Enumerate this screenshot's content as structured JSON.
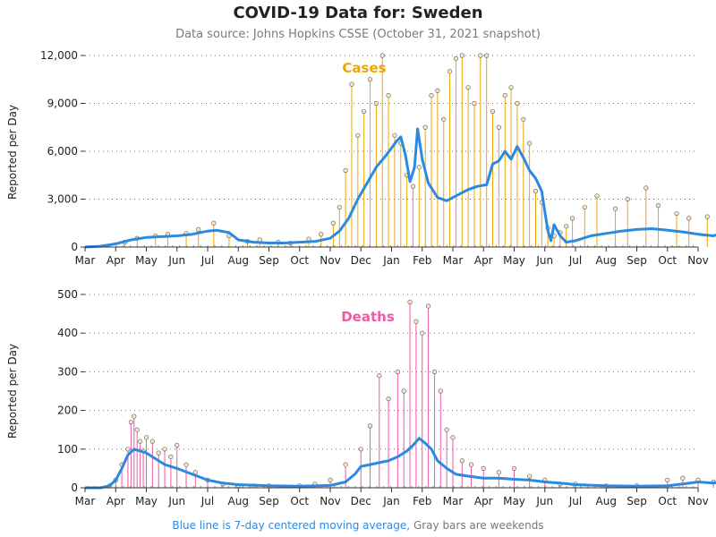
{
  "title": "COVID-19 Data for: Sweden",
  "subtitle": "Data source: Johns Hopkins CSSE (October 31, 2021 snapshot)",
  "footer": {
    "blue": "Blue line is 7-day centered moving average,",
    "gray": "Gray bars are weekends"
  },
  "colors": {
    "cases": "#f0a500",
    "deaths": "#ee5aa6",
    "average": "#2b8ae0",
    "weekend": "#9a9a9a"
  },
  "chart_data": [
    {
      "type": "bar",
      "label": "Cases",
      "ylabel": "Reported per Day",
      "ylim": [
        0,
        12000
      ],
      "yticks": [
        "0",
        "3,000",
        "6,000",
        "9,000",
        "12,000"
      ],
      "ytick_values": [
        0,
        3000,
        6000,
        9000,
        12000
      ],
      "xticks": [
        "Mar",
        "Apr",
        "May",
        "Jun",
        "Jul",
        "Aug",
        "Sep",
        "Oct",
        "Nov",
        "Dec",
        "Jan",
        "Feb",
        "Mar",
        "Apr",
        "May",
        "Jun",
        "Jul",
        "Aug",
        "Sep",
        "Oct",
        "Nov"
      ],
      "grid": "horizontal dotted",
      "series": [
        {
          "name": "Cases",
          "kind": "daily",
          "x_month_index": [
            1.3,
            1.7,
            2.3,
            2.7,
            3.3,
            3.7,
            4.2,
            4.7,
            5.3,
            5.7,
            6.3,
            6.7,
            7.3,
            7.7,
            8.1,
            8.3,
            8.5,
            8.7,
            8.9,
            9.1,
            9.3,
            9.5,
            9.7,
            9.9,
            10.1,
            10.3,
            10.5,
            10.7,
            10.9,
            11.1,
            11.3,
            11.5,
            11.7,
            11.9,
            12.1,
            12.3,
            12.5,
            12.7,
            12.9,
            13.1,
            13.3,
            13.5,
            13.7,
            13.9,
            14.1,
            14.3,
            14.5,
            14.7,
            14.9,
            15.1,
            15.3,
            15.5,
            15.7,
            15.9,
            16.3,
            16.7,
            17.3,
            17.7,
            18.3,
            18.7,
            19.3,
            19.7,
            20.3,
            20.7
          ],
          "values": [
            300,
            550,
            700,
            800,
            850,
            1100,
            1500,
            700,
            350,
            450,
            300,
            250,
            500,
            800,
            1500,
            2500,
            4800,
            10200,
            7000,
            8500,
            10500,
            9000,
            12000,
            9500,
            7000,
            6500,
            4500,
            3800,
            5000,
            7500,
            9500,
            9800,
            8000,
            11000,
            11800,
            12000,
            10000,
            9000,
            12000,
            12000,
            8500,
            7500,
            9500,
            10000,
            9000,
            8000,
            6500,
            3500,
            2800,
            1200,
            700,
            900,
            1300,
            1800,
            2500,
            3200,
            2400,
            3000,
            3700,
            2600,
            2100,
            1800,
            1900,
            1600
          ]
        },
        {
          "name": "7-day average",
          "kind": "average",
          "x_month_index": [
            0,
            0.5,
            1,
            1.5,
            2,
            2.5,
            3,
            3.5,
            4,
            4.3,
            4.7,
            5,
            5.5,
            6,
            6.5,
            7,
            7.5,
            8,
            8.3,
            8.6,
            8.9,
            9.2,
            9.5,
            9.8,
            10,
            10.15,
            10.3,
            10.45,
            10.6,
            10.75,
            10.85,
            11,
            11.2,
            11.5,
            11.8,
            12.1,
            12.5,
            12.8,
            13.1,
            13.3,
            13.5,
            13.7,
            13.9,
            14.1,
            14.3,
            14.5,
            14.7,
            14.9,
            15.0,
            15.1,
            15.2,
            15.3,
            15.5,
            15.7,
            16,
            16.5,
            17,
            17.5,
            18,
            18.5,
            19,
            19.5,
            20,
            20.5,
            20.9
          ],
          "values": [
            0,
            50,
            200,
            450,
            600,
            650,
            700,
            800,
            1000,
            1050,
            900,
            450,
            300,
            250,
            250,
            300,
            350,
            550,
            1000,
            1800,
            3000,
            4000,
            5000,
            5700,
            6200,
            6600,
            6900,
            5800,
            4100,
            5000,
            7400,
            5500,
            4000,
            3100,
            2900,
            3200,
            3600,
            3800,
            3900,
            5200,
            5400,
            6000,
            5500,
            6300,
            5600,
            4800,
            4300,
            3500,
            2200,
            1000,
            400,
            1400,
            700,
            300,
            400,
            700,
            850,
            1000,
            1100,
            1150,
            1050,
            950,
            800,
            700,
            950
          ]
        }
      ]
    },
    {
      "type": "bar",
      "label": "Deaths",
      "ylabel": "Reported per Day",
      "ylim": [
        0,
        500
      ],
      "yticks": [
        "0",
        "100",
        "200",
        "300",
        "400",
        "500"
      ],
      "ytick_values": [
        0,
        100,
        200,
        300,
        400,
        500
      ],
      "xticks": [
        "Mar",
        "Apr",
        "May",
        "Jun",
        "Jul",
        "Aug",
        "Sep",
        "Oct",
        "Nov",
        "Dec",
        "Jan",
        "Feb",
        "Mar",
        "Apr",
        "May",
        "Jun",
        "Jul",
        "Aug",
        "Sep",
        "Oct",
        "Nov"
      ],
      "grid": "horizontal dotted",
      "series": [
        {
          "name": "Deaths",
          "kind": "daily",
          "x_month_index": [
            0.8,
            1.0,
            1.2,
            1.4,
            1.5,
            1.6,
            1.7,
            1.8,
            1.9,
            2.0,
            2.2,
            2.4,
            2.6,
            2.8,
            3.0,
            3.3,
            3.6,
            4.0,
            4.5,
            5.0,
            5.5,
            6.0,
            7.0,
            7.5,
            8.0,
            8.5,
            9.0,
            9.3,
            9.6,
            9.9,
            10.2,
            10.4,
            10.6,
            10.8,
            11.0,
            11.2,
            11.4,
            11.6,
            11.8,
            12.0,
            12.3,
            12.6,
            13.0,
            13.5,
            14.0,
            14.5,
            15.0,
            15.5,
            16.0,
            17.0,
            18.0,
            19.0,
            19.5,
            20.0,
            20.5
          ],
          "values": [
            5,
            20,
            60,
            100,
            170,
            185,
            150,
            120,
            95,
            130,
            120,
            90,
            100,
            80,
            110,
            60,
            40,
            20,
            10,
            5,
            5,
            5,
            5,
            10,
            20,
            60,
            100,
            160,
            290,
            230,
            300,
            250,
            480,
            430,
            400,
            470,
            300,
            250,
            150,
            130,
            70,
            60,
            50,
            40,
            50,
            30,
            20,
            10,
            10,
            5,
            5,
            20,
            25,
            20,
            15
          ]
        },
        {
          "name": "7-day average",
          "kind": "average",
          "x_month_index": [
            0,
            0.5,
            0.8,
            1.0,
            1.2,
            1.4,
            1.6,
            1.8,
            2.0,
            2.3,
            2.6,
            3.0,
            3.5,
            4.0,
            4.5,
            5.0,
            6.0,
            7.0,
            8.0,
            8.5,
            8.8,
            9.0,
            9.3,
            9.6,
            9.9,
            10.2,
            10.5,
            10.7,
            10.9,
            11.1,
            11.3,
            11.5,
            11.8,
            12.1,
            12.5,
            13.0,
            13.5,
            14.0,
            14.5,
            15.0,
            15.5,
            16.0,
            17.0,
            18.0,
            19.0,
            19.5,
            20.0,
            20.5,
            20.9
          ],
          "values": [
            0,
            0,
            5,
            20,
            50,
            85,
            100,
            95,
            90,
            75,
            60,
            50,
            35,
            20,
            12,
            8,
            5,
            4,
            6,
            15,
            35,
            55,
            60,
            65,
            70,
            80,
            95,
            110,
            128,
            115,
            100,
            70,
            50,
            35,
            30,
            25,
            25,
            22,
            20,
            15,
            12,
            8,
            5,
            4,
            5,
            10,
            15,
            12,
            18
          ]
        }
      ]
    }
  ]
}
